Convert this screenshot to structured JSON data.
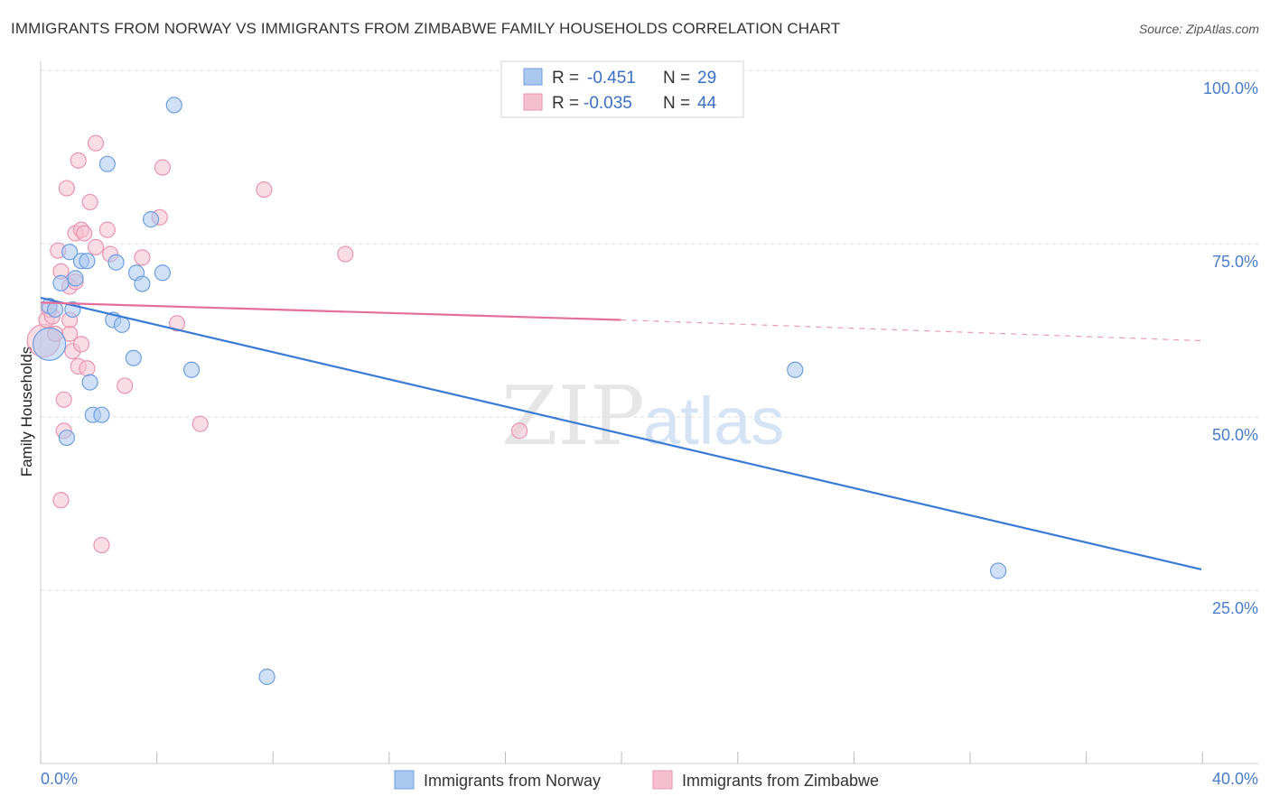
{
  "header": {
    "title": "IMMIGRANTS FROM NORWAY VS IMMIGRANTS FROM ZIMBABWE FAMILY HOUSEHOLDS CORRELATION CHART",
    "source": "Source: ZipAtlas.com"
  },
  "watermark": {
    "zip": "ZIP",
    "atlas": "atlas"
  },
  "stats": [
    {
      "r_label": "R =",
      "r_value": "-0.451",
      "n_label": "N =",
      "n_value": "29",
      "color": "#5b8ee0"
    },
    {
      "r_label": "R =",
      "r_value": "-0.035",
      "n_label": "N =",
      "n_value": "44",
      "color": "#ea8aab"
    }
  ],
  "colors": {
    "norway_fill": "#aac8f0",
    "norway_stroke": "#6f9edf",
    "norway_line": "#3a7bd5",
    "zimbabwe_fill": "#f6bfd0",
    "zimbabwe_stroke": "#e896b0",
    "zimbabwe_line": "#e2709a",
    "grid": "#dddddd",
    "tick_label": "#4a7cc9"
  },
  "chart_data": {
    "type": "scatter",
    "title": "IMMIGRANTS FROM NORWAY VS IMMIGRANTS FROM ZIMBABWE FAMILY HOUSEHOLDS CORRELATION CHART",
    "xlabel": "",
    "ylabel": "Family Households",
    "xlim": [
      0,
      40
    ],
    "ylim": [
      0,
      100
    ],
    "x_tick_labels": {
      "min": "0.0%",
      "max": "40.0%"
    },
    "y_ticks": [
      {
        "value": 100,
        "label": "100.0%"
      },
      {
        "value": 75,
        "label": "75.0%"
      },
      {
        "value": 50,
        "label": "50.0%"
      },
      {
        "value": 25,
        "label": "25.0%"
      }
    ],
    "grid": true,
    "legend_position": "bottom-center",
    "series": [
      {
        "name": "Immigrants from Norway",
        "trend": {
          "x0": 0,
          "y0": 67.2,
          "x1": 40,
          "y1": 28.0
        },
        "points": [
          {
            "x": 0.3,
            "y": 60.5,
            "size": "large"
          },
          {
            "x": 0.3,
            "y": 66.0
          },
          {
            "x": 0.5,
            "y": 65.5
          },
          {
            "x": 0.7,
            "y": 69.3
          },
          {
            "x": 0.9,
            "y": 47.0
          },
          {
            "x": 1.0,
            "y": 73.8
          },
          {
            "x": 1.1,
            "y": 65.5
          },
          {
            "x": 1.2,
            "y": 70.0
          },
          {
            "x": 1.4,
            "y": 72.5
          },
          {
            "x": 1.6,
            "y": 72.5
          },
          {
            "x": 1.7,
            "y": 55.0
          },
          {
            "x": 1.8,
            "y": 50.3
          },
          {
            "x": 2.1,
            "y": 50.3
          },
          {
            "x": 2.3,
            "y": 86.5
          },
          {
            "x": 2.5,
            "y": 64.0
          },
          {
            "x": 2.6,
            "y": 72.3
          },
          {
            "x": 2.8,
            "y": 63.3
          },
          {
            "x": 3.2,
            "y": 58.5
          },
          {
            "x": 3.3,
            "y": 70.8
          },
          {
            "x": 3.5,
            "y": 69.2
          },
          {
            "x": 3.8,
            "y": 78.5
          },
          {
            "x": 4.2,
            "y": 70.8
          },
          {
            "x": 4.6,
            "y": 95.0
          },
          {
            "x": 5.2,
            "y": 56.8
          },
          {
            "x": 7.8,
            "y": 12.5
          },
          {
            "x": 26.0,
            "y": 56.8
          },
          {
            "x": 33.0,
            "y": 27.8
          }
        ]
      },
      {
        "name": "Immigrants from Zimbabwe",
        "trend": {
          "x0": 0,
          "y0": 66.5,
          "x1": 20,
          "y1": 64.0,
          "dashed_to_x": 40,
          "dashed_to_y": 61.0
        },
        "points": [
          {
            "x": 0.1,
            "y": 61.0,
            "size": "large"
          },
          {
            "x": 0.2,
            "y": 64.0
          },
          {
            "x": 0.3,
            "y": 65.5
          },
          {
            "x": 0.4,
            "y": 64.5
          },
          {
            "x": 0.5,
            "y": 62.0
          },
          {
            "x": 0.6,
            "y": 74.0
          },
          {
            "x": 0.7,
            "y": 71.0
          },
          {
            "x": 0.7,
            "y": 38.0
          },
          {
            "x": 0.8,
            "y": 48.0
          },
          {
            "x": 0.8,
            "y": 52.5
          },
          {
            "x": 0.9,
            "y": 83.0
          },
          {
            "x": 1.0,
            "y": 68.8
          },
          {
            "x": 1.0,
            "y": 62.0
          },
          {
            "x": 1.0,
            "y": 64.0
          },
          {
            "x": 1.1,
            "y": 59.5
          },
          {
            "x": 1.2,
            "y": 69.5
          },
          {
            "x": 1.2,
            "y": 76.5
          },
          {
            "x": 1.3,
            "y": 57.3
          },
          {
            "x": 1.3,
            "y": 87.0
          },
          {
            "x": 1.4,
            "y": 77.0
          },
          {
            "x": 1.4,
            "y": 60.5
          },
          {
            "x": 1.5,
            "y": 76.5
          },
          {
            "x": 1.6,
            "y": 57.0
          },
          {
            "x": 1.7,
            "y": 81.0
          },
          {
            "x": 1.9,
            "y": 89.5
          },
          {
            "x": 1.9,
            "y": 74.5
          },
          {
            "x": 2.1,
            "y": 31.5
          },
          {
            "x": 2.3,
            "y": 77.0
          },
          {
            "x": 2.4,
            "y": 73.5
          },
          {
            "x": 2.9,
            "y": 54.5
          },
          {
            "x": 3.5,
            "y": 73.0
          },
          {
            "x": 4.1,
            "y": 78.8
          },
          {
            "x": 4.2,
            "y": 86.0
          },
          {
            "x": 4.7,
            "y": 63.5
          },
          {
            "x": 5.5,
            "y": 49.0
          },
          {
            "x": 7.7,
            "y": 82.8
          },
          {
            "x": 10.5,
            "y": 73.5
          },
          {
            "x": 16.5,
            "y": 48.0
          }
        ]
      }
    ]
  }
}
